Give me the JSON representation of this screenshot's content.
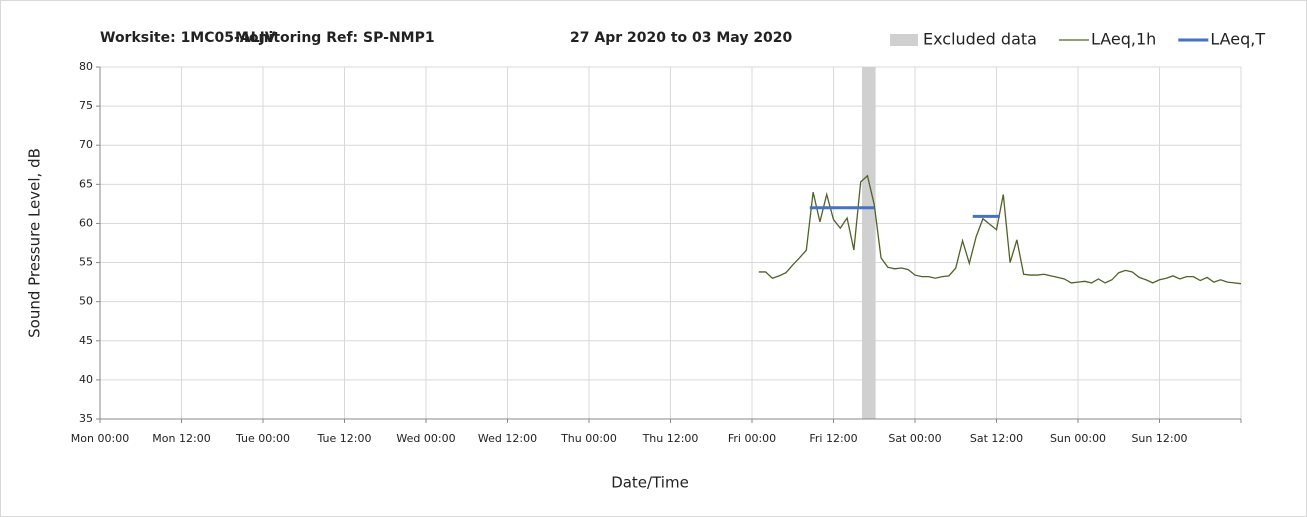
{
  "chart_data": {
    "type": "line",
    "title_parts": [
      "Worksite: 1MC05-ALJV",
      "Monitoring Ref: SP-NMP1",
      "27 Apr 2020 to 03 May 2020"
    ],
    "xlabel": "Date/Time",
    "ylabel": "Sound Pressure Level, dB",
    "xlim": [
      0,
      168
    ],
    "xticks": [
      {
        "value": 0,
        "label": "Mon 00:00"
      },
      {
        "value": 12,
        "label": "Mon 12:00"
      },
      {
        "value": 24,
        "label": "Tue 00:00"
      },
      {
        "value": 36,
        "label": "Tue 12:00"
      },
      {
        "value": 48,
        "label": "Wed 00:00"
      },
      {
        "value": 60,
        "label": "Wed 12:00"
      },
      {
        "value": 72,
        "label": "Thu 00:00"
      },
      {
        "value": 84,
        "label": "Thu 12:00"
      },
      {
        "value": 96,
        "label": "Fri 00:00"
      },
      {
        "value": 108,
        "label": "Fri 12:00"
      },
      {
        "value": 120,
        "label": "Sat 00:00"
      },
      {
        "value": 132,
        "label": "Sat 12:00"
      },
      {
        "value": 144,
        "label": "Sun 00:00"
      },
      {
        "value": 156,
        "label": "Sun 12:00"
      },
      {
        "value": 168,
        "label": null
      }
    ],
    "ylim": [
      35,
      80
    ],
    "yticks": [
      35,
      40,
      45,
      50,
      55,
      60,
      65,
      70,
      75,
      80
    ],
    "grid": true,
    "shaded_regions": [
      {
        "name": "Excluded data",
        "color": "#d0d0d0",
        "range": [
          112.2,
          114.2
        ]
      }
    ],
    "series": [
      {
        "name": "LAeq,1h",
        "color": "#4f6228",
        "x": [
          97,
          98,
          99,
          100,
          101,
          102,
          103,
          104,
          105,
          106,
          107,
          108,
          109,
          110,
          111,
          112,
          113,
          114,
          115,
          116,
          117,
          118,
          119,
          120,
          121,
          122,
          123,
          124,
          125,
          126,
          127,
          128,
          129,
          130,
          131,
          132,
          133,
          134,
          135,
          136,
          137,
          138,
          139,
          140,
          141,
          142,
          143,
          144,
          145,
          146,
          147,
          148,
          149,
          150,
          151,
          152,
          153,
          154,
          155,
          156,
          157,
          158,
          159,
          160,
          161,
          162,
          163,
          164,
          165,
          166,
          167,
          168
        ],
        "values": [
          53.8,
          53.8,
          53.0,
          53.3,
          53.7,
          54.7,
          55.6,
          56.6,
          64.0,
          60.2,
          63.7,
          60.5,
          59.4,
          60.7,
          56.6,
          65.3,
          66.1,
          62.4,
          55.6,
          54.4,
          54.2,
          54.3,
          54.1,
          53.4,
          53.2,
          53.2,
          53.0,
          53.2,
          53.3,
          54.3,
          57.8,
          54.9,
          58.3,
          60.6,
          59.9,
          59.2,
          63.7,
          55.0,
          57.9,
          53.5,
          53.4,
          53.4,
          53.5,
          53.3,
          53.1,
          52.9,
          52.4,
          52.5,
          52.6,
          52.4,
          52.9,
          52.4,
          52.8,
          53.7,
          54.0,
          53.8,
          53.1,
          52.8,
          52.4,
          52.8,
          53.0,
          53.3,
          52.9,
          53.2,
          53.2,
          52.7,
          53.1,
          52.5,
          52.8,
          52.5,
          52.4,
          52.3
        ]
      },
      {
        "name": "LAeq,T",
        "color": "#4472c4",
        "x": [
          104.5,
          114,
          121,
          128.5,
          132.5
        ],
        "values": [
          62.0,
          62.0,
          null,
          60.9,
          60.9
        ]
      }
    ]
  }
}
